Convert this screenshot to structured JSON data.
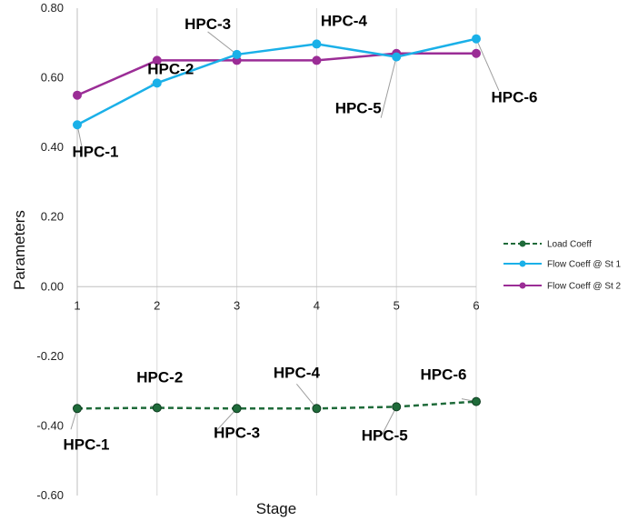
{
  "chart_data": {
    "type": "line",
    "x": [
      1,
      2,
      3,
      4,
      5,
      6
    ],
    "xlim": [
      1,
      6
    ],
    "ylim": [
      -0.6,
      0.8
    ],
    "yticks": [
      -0.6,
      -0.4,
      -0.2,
      0.0,
      0.2,
      0.4,
      0.6,
      0.8
    ],
    "ytick_labels": [
      "-0.60",
      "-0.40",
      "-0.20",
      "0.00",
      "0.20",
      "0.40",
      "0.60",
      "0.80"
    ],
    "xtick_labels": [
      "1",
      "2",
      "3",
      "4",
      "5",
      "6"
    ],
    "xlabel": "Stage",
    "ylabel": "Parameters",
    "grid": "vertical",
    "legend_position": "right",
    "series": [
      {
        "name": "Load Coeff",
        "values": [
          -0.35,
          -0.348,
          -0.35,
          -0.35,
          -0.345,
          -0.33
        ],
        "color": "#1f6b3a",
        "dashed": true
      },
      {
        "name": "Flow Coeff @ St 1",
        "values": [
          0.465,
          0.585,
          0.667,
          0.697,
          0.66,
          0.712
        ],
        "color": "#1ab0e8",
        "dashed": false
      },
      {
        "name": "Flow Coeff @ St 2",
        "values": [
          0.55,
          0.65,
          0.65,
          0.65,
          0.67,
          0.67
        ],
        "color": "#9b2d96",
        "dashed": false
      }
    ],
    "annotations": [
      {
        "text": "HPC-1",
        "series": 1,
        "index": 0
      },
      {
        "text": "HPC-2",
        "series": 1,
        "index": 1
      },
      {
        "text": "HPC-3",
        "series": 1,
        "index": 2
      },
      {
        "text": "HPC-4",
        "series": 1,
        "index": 3
      },
      {
        "text": "HPC-5",
        "series": 1,
        "index": 4
      },
      {
        "text": "HPC-6",
        "series": 1,
        "index": 5
      },
      {
        "text": "HPC-1",
        "series": 0,
        "index": 0
      },
      {
        "text": "HPC-2",
        "series": 0,
        "index": 1
      },
      {
        "text": "HPC-3",
        "series": 0,
        "index": 2
      },
      {
        "text": "HPC-4",
        "series": 0,
        "index": 3
      },
      {
        "text": "HPC-5",
        "series": 0,
        "index": 4
      },
      {
        "text": "HPC-6",
        "series": 0,
        "index": 5
      }
    ]
  }
}
